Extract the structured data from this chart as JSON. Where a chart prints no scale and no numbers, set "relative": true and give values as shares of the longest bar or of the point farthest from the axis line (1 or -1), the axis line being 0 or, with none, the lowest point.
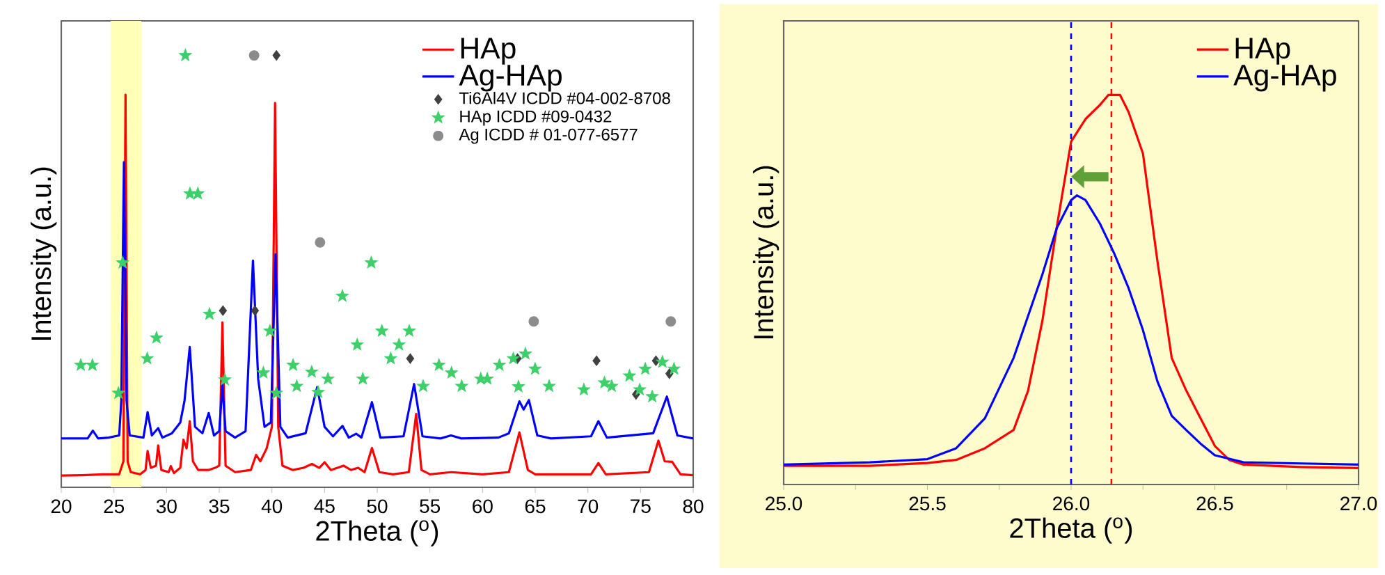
{
  "chart_data": [
    {
      "type": "line",
      "xlabel": "2Theta ($^{o}$)",
      "ylabel": "Intensity (a.u.)",
      "relative": true,
      "xlim": [
        20,
        80
      ],
      "xticks": [
        20,
        25,
        30,
        35,
        40,
        45,
        50,
        55,
        60,
        65,
        70,
        75,
        80
      ],
      "legend": "top right",
      "bands": [
        {
          "axis": "x",
          "from": 24.7,
          "to": 27.6,
          "color": "#ffffb8"
        }
      ],
      "series": [
        {
          "name": "HAp",
          "color": "#ff0000",
          "x": [
            20,
            22,
            24,
            25.5,
            25.9,
            26.1,
            26.3,
            26.6,
            27.5,
            28.0,
            28.2,
            28.5,
            29.0,
            29.2,
            29.5,
            30.2,
            30.4,
            30.7,
            31.3,
            31.6,
            31.9,
            32.2,
            32.5,
            33.0,
            34.0,
            34.6,
            35.0,
            35.3,
            35.6,
            36.5,
            38.0,
            38.5,
            38.9,
            39.5,
            40.0,
            40.3,
            40.6,
            41.0,
            42.0,
            43.0,
            43.8,
            44.5,
            45.0,
            45.6,
            46.8,
            47.5,
            48.2,
            48.8,
            49.5,
            50.2,
            51.5,
            53.0,
            53.7,
            54.2,
            55.0,
            57.0,
            60,
            62.5,
            63.5,
            64.3,
            65,
            70.3,
            71.0,
            71.7,
            75.8,
            76.7,
            77.3,
            78.0,
            78.8,
            80
          ],
          "values": [
            0.027,
            0.028,
            0.03,
            0.03,
            0.06,
            0.909,
            0.06,
            0.035,
            0.03,
            0.04,
            0.084,
            0.045,
            0.05,
            0.097,
            0.04,
            0.035,
            0.049,
            0.033,
            0.045,
            0.11,
            0.09,
            0.153,
            0.06,
            0.04,
            0.04,
            0.045,
            0.05,
            0.382,
            0.05,
            0.035,
            0.04,
            0.075,
            0.06,
            0.09,
            0.14,
            0.89,
            0.14,
            0.05,
            0.04,
            0.045,
            0.054,
            0.045,
            0.058,
            0.04,
            0.05,
            0.04,
            0.045,
            0.035,
            0.091,
            0.035,
            0.03,
            0.035,
            0.17,
            0.04,
            0.03,
            0.035,
            0.03,
            0.035,
            0.127,
            0.04,
            0.03,
            0.03,
            0.056,
            0.03,
            0.035,
            0.108,
            0.06,
            0.059,
            0.03,
            0.028
          ]
        },
        {
          "name": "Ag-HAp",
          "color": "#0000ff",
          "x": [
            20,
            22.5,
            23,
            23.5,
            24.5,
            25.5,
            25.7,
            25.95,
            26.2,
            26.5,
            27.8,
            28.2,
            28.6,
            29.2,
            29.6,
            30.5,
            31.3,
            31.7,
            32.2,
            32.7,
            33.4,
            34.0,
            34.5,
            35.0,
            35.3,
            35.6,
            36.5,
            37.5,
            38.2,
            38.7,
            39.3,
            39.9,
            40.35,
            40.8,
            41.5,
            43.2,
            44.3,
            45.0,
            45.8,
            46.7,
            47.3,
            48,
            48.5,
            49.5,
            50.3,
            52.5,
            53.5,
            54.3,
            56,
            57,
            58,
            61.5,
            62.5,
            63.5,
            63.9,
            64.4,
            65.2,
            66.5,
            70.3,
            71.0,
            71.8,
            76.2,
            77.5,
            78.5,
            80
          ],
          "values": [
            0.113,
            0.113,
            0.131,
            0.113,
            0.115,
            0.12,
            0.2,
            0.753,
            0.2,
            0.12,
            0.115,
            0.174,
            0.12,
            0.137,
            0.115,
            0.125,
            0.15,
            0.2,
            0.325,
            0.14,
            0.125,
            0.172,
            0.12,
            0.13,
            0.237,
            0.13,
            0.115,
            0.13,
            0.525,
            0.25,
            0.14,
            0.15,
            0.54,
            0.14,
            0.115,
            0.125,
            0.232,
            0.14,
            0.118,
            0.142,
            0.115,
            0.124,
            0.115,
            0.197,
            0.115,
            0.118,
            0.239,
            0.118,
            0.113,
            0.12,
            0.113,
            0.115,
            0.125,
            0.199,
            0.18,
            0.202,
            0.12,
            0.113,
            0.118,
            0.153,
            0.115,
            0.125,
            0.21,
            0.12,
            0.113
          ]
        },
        {
          "name": "Ti6Al4V ICDD #04-002-8708",
          "type": "scatter",
          "marker": "diamond",
          "color": "#404040",
          "x": [
            35.35,
            38.39,
            40.43,
            53.13,
            63.32,
            70.82,
            74.57,
            76.46,
            77.74
          ],
          "values": [
            0.409,
            0.409,
            1.0,
            0.298,
            0.298,
            0.293,
            0.215,
            0.293,
            0.263
          ]
        },
        {
          "name": "HAp ICDD #09-0432",
          "type": "scatter",
          "marker": "star",
          "color": "#3ecf6a",
          "x": [
            21.85,
            22.96,
            25.43,
            25.83,
            28.16,
            29.04,
            31.78,
            32.22,
            32.97,
            34.07,
            35.53,
            39.19,
            39.81,
            40.42,
            42.01,
            42.36,
            43.78,
            44.39,
            45.32,
            46.69,
            48.1,
            48.63,
            49.43,
            50.44,
            51.28,
            52.07,
            53.04,
            54.36,
            55.86,
            57.05,
            58.02,
            59.83,
            60.45,
            61.6,
            62.92,
            63.41,
            64.07,
            64.99,
            66.32,
            69.62,
            71.57,
            72.27,
            73.95,
            74.92,
            75.45,
            76.11,
            77.08,
            78.18
          ],
          "values": [
            0.283,
            0.283,
            0.218,
            0.52,
            0.298,
            0.346,
            1.0,
            0.68,
            0.68,
            0.401,
            0.249,
            0.265,
            0.362,
            0.218,
            0.283,
            0.234,
            0.267,
            0.22,
            0.251,
            0.443,
            0.33,
            0.251,
            0.52,
            0.362,
            0.298,
            0.33,
            0.362,
            0.234,
            0.283,
            0.265,
            0.234,
            0.251,
            0.251,
            0.283,
            0.298,
            0.233,
            0.309,
            0.274,
            0.234,
            0.226,
            0.242,
            0.234,
            0.258,
            0.226,
            0.274,
            0.21,
            0.29,
            0.274
          ]
        },
        {
          "name": "Ag ICDD # 01-077-6577",
          "type": "scatter",
          "marker": "circle",
          "color": "#8c8c8c",
          "x": [
            38.31,
            44.57,
            64.86,
            77.87
          ],
          "values": [
            1.0,
            0.567,
            0.384,
            0.384
          ]
        }
      ]
    },
    {
      "type": "line",
      "xlabel": "2Theta ($^{o}$)",
      "ylabel": "Intensity (a.u.)",
      "relative": true,
      "xlim": [
        25,
        27
      ],
      "xticks": [
        {
          "value": 25,
          "label": "25.0"
        },
        {
          "value": 25.5,
          "label": "25.5"
        },
        {
          "value": 26,
          "label": "26.0"
        },
        {
          "value": 26.5,
          "label": "26.5"
        },
        {
          "value": 27,
          "label": "27.0"
        }
      ],
      "legend": "top right",
      "ref_lines": [
        {
          "axis": "x",
          "value": 26.0,
          "color": "#0000ff",
          "line_style": "dashed"
        },
        {
          "axis": "x",
          "value": 26.14,
          "color": "#ff0000",
          "line_style": "dashed"
        }
      ],
      "series": [
        {
          "name": "HAp",
          "color": "#ff0000",
          "x": [
            25.0,
            25.3,
            25.5,
            25.6,
            25.7,
            25.8,
            25.85,
            25.9,
            25.95,
            26.0,
            26.05,
            26.1,
            26.13,
            26.17,
            26.2,
            26.25,
            26.3,
            26.35,
            26.4,
            26.45,
            26.5,
            26.55,
            26.6,
            26.8,
            27.0
          ],
          "values": [
            0.048,
            0.048,
            0.055,
            0.063,
            0.093,
            0.14,
            0.24,
            0.42,
            0.66,
            0.88,
            0.938,
            0.974,
            1.0,
            1.0,
            0.956,
            0.849,
            0.575,
            0.325,
            0.242,
            0.17,
            0.099,
            0.063,
            0.051,
            0.045,
            0.042
          ]
        },
        {
          "name": "Ag-HAp",
          "color": "#0000ff",
          "x": [
            25.0,
            25.3,
            25.5,
            25.6,
            25.7,
            25.8,
            25.9,
            25.95,
            26.0,
            26.02,
            26.05,
            26.1,
            26.15,
            26.2,
            26.25,
            26.3,
            26.35,
            26.4,
            26.45,
            26.5,
            26.6,
            26.8,
            27.0
          ],
          "values": [
            0.051,
            0.057,
            0.065,
            0.093,
            0.17,
            0.325,
            0.539,
            0.658,
            0.73,
            0.742,
            0.73,
            0.67,
            0.593,
            0.504,
            0.396,
            0.265,
            0.176,
            0.14,
            0.105,
            0.075,
            0.057,
            0.054,
            0.051
          ]
        }
      ]
    }
  ]
}
